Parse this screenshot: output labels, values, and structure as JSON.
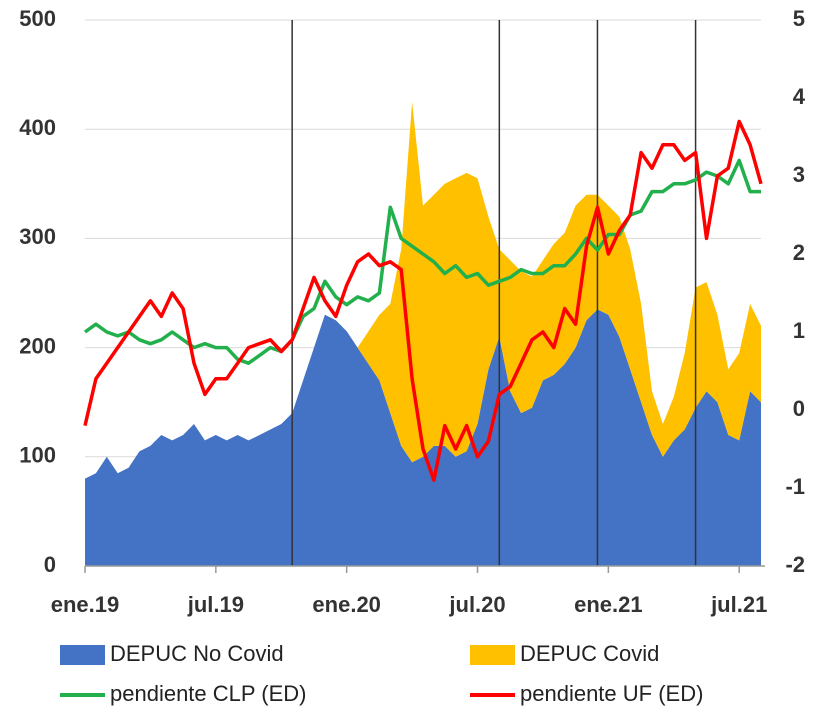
{
  "chart_data": {
    "type": "area-line",
    "categories": [
      "ene.19",
      null,
      null,
      null,
      null,
      null,
      null,
      null,
      null,
      null,
      null,
      null,
      "jul.19",
      null,
      null,
      null,
      null,
      null,
      null,
      null,
      null,
      null,
      null,
      null,
      "ene.20",
      null,
      null,
      null,
      null,
      null,
      null,
      null,
      null,
      null,
      null,
      null,
      "jul.20",
      null,
      null,
      null,
      null,
      null,
      null,
      null,
      null,
      null,
      null,
      null,
      "ene.21",
      null,
      null,
      null,
      null,
      null,
      null,
      null,
      null,
      null,
      null,
      null,
      "jul.21",
      null,
      null
    ],
    "series": [
      {
        "name": "DEPUC No Covid",
        "color": "#4472c4",
        "kind": "area",
        "stack": true,
        "values": [
          80,
          85,
          100,
          85,
          90,
          105,
          110,
          120,
          115,
          120,
          130,
          115,
          120,
          115,
          120,
          115,
          120,
          125,
          130,
          140,
          170,
          200,
          230,
          225,
          215,
          200,
          185,
          170,
          140,
          110,
          95,
          100,
          110,
          110,
          100,
          105,
          130,
          180,
          210,
          160,
          140,
          145,
          170,
          175,
          185,
          200,
          225,
          235,
          230,
          210,
          180,
          150,
          120,
          100,
          115,
          125,
          145,
          160,
          150,
          120,
          115,
          160,
          150
        ]
      },
      {
        "name": "DEPUC Covid",
        "color": "#ffc000",
        "kind": "area",
        "stack": true,
        "values": [
          0,
          0,
          0,
          0,
          0,
          0,
          0,
          0,
          0,
          0,
          0,
          0,
          0,
          0,
          0,
          0,
          0,
          0,
          0,
          0,
          0,
          0,
          0,
          0,
          0,
          0,
          30,
          60,
          100,
          180,
          330,
          230,
          230,
          240,
          255,
          255,
          225,
          140,
          80,
          120,
          130,
          120,
          110,
          120,
          120,
          130,
          115,
          105,
          100,
          110,
          110,
          90,
          40,
          30,
          40,
          70,
          110,
          100,
          80,
          60,
          80,
          80,
          70
        ]
      },
      {
        "name": "pendiente CLP (ED)",
        "color": "#21b04b",
        "kind": "line",
        "axis": "y2",
        "values": [
          1.0,
          1.1,
          1.0,
          0.95,
          1.0,
          0.9,
          0.85,
          0.9,
          1.0,
          0.9,
          0.8,
          0.85,
          0.8,
          0.8,
          0.65,
          0.6,
          0.7,
          0.8,
          0.75,
          0.9,
          1.2,
          1.3,
          1.65,
          1.45,
          1.35,
          1.45,
          1.4,
          1.5,
          2.6,
          2.2,
          2.1,
          2.0,
          1.9,
          1.75,
          1.85,
          1.7,
          1.75,
          1.6,
          1.65,
          1.7,
          1.8,
          1.75,
          1.75,
          1.85,
          1.85,
          2.0,
          2.2,
          2.05,
          2.25,
          2.25,
          2.5,
          2.55,
          2.8,
          2.8,
          2.9,
          2.9,
          2.95,
          3.05,
          3.0,
          2.9,
          3.2,
          2.8,
          2.8
        ]
      },
      {
        "name": "pendiente UF (ED)",
        "color": "#ff0000",
        "kind": "line",
        "axis": "y2",
        "values": [
          -0.2,
          0.4,
          0.6,
          0.8,
          1.0,
          1.2,
          1.4,
          1.2,
          1.5,
          1.3,
          0.6,
          0.2,
          0.4,
          0.4,
          0.6,
          0.8,
          0.85,
          0.9,
          0.75,
          0.9,
          1.3,
          1.7,
          1.4,
          1.2,
          1.6,
          1.9,
          2.0,
          1.85,
          1.9,
          1.8,
          0.4,
          -0.5,
          -0.9,
          -0.2,
          -0.5,
          -0.2,
          -0.6,
          -0.4,
          0.2,
          0.3,
          0.6,
          0.9,
          1.0,
          0.8,
          1.3,
          1.1,
          2.1,
          2.6,
          2.0,
          2.3,
          2.5,
          3.3,
          3.1,
          3.4,
          3.4,
          3.2,
          3.3,
          2.2,
          3.0,
          3.1,
          3.7,
          3.4,
          2.9
        ]
      }
    ],
    "ylim": [
      0,
      500
    ],
    "yticks": [
      0,
      100,
      200,
      300,
      400,
      500
    ],
    "y2lim": [
      -2,
      5
    ],
    "y2ticks": [
      -2,
      -1,
      0,
      1,
      2,
      3,
      4,
      5
    ],
    "grid": true,
    "vlines": [
      19,
      38,
      47,
      56
    ],
    "legend": "bottom"
  }
}
